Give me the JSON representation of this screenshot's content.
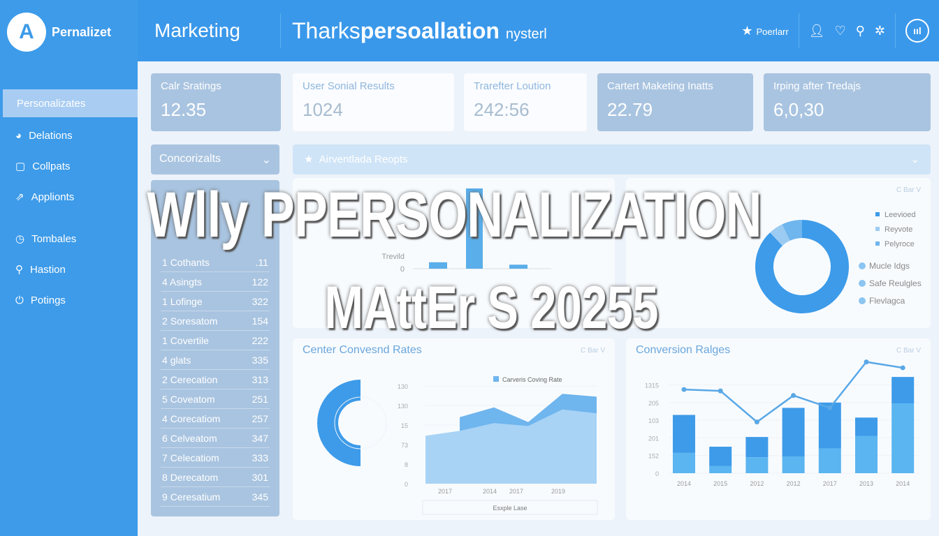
{
  "brand": {
    "logo_letter": "A",
    "name": "Pernalizet"
  },
  "sidebar": {
    "items": [
      {
        "label": "Personalizates",
        "icon": "none",
        "active": true
      },
      {
        "label": "Delations",
        "icon": "pie-icon"
      },
      {
        "label": "Collpats",
        "icon": "clipboard-icon"
      },
      {
        "label": "Applionts",
        "icon": "share-icon"
      },
      {
        "label": "Tombales",
        "icon": "clock-icon"
      },
      {
        "label": "Hastion",
        "icon": "link-icon"
      },
      {
        "label": "Potings",
        "icon": "power-icon"
      }
    ]
  },
  "header": {
    "section": "Marketing",
    "title_pre": "Tharks",
    "title_bold": "persoallation",
    "title_post": "nysterl",
    "action_label": "Poerlarr",
    "round_label": "ııl"
  },
  "stats": [
    {
      "label": "Calr Sratings",
      "value": "12.35"
    },
    {
      "label": "User Sonial Results",
      "value": "1024"
    },
    {
      "label": "Trarefter Loution",
      "value": "242:56"
    },
    {
      "label": "Cartert Maketing Inatts",
      "value": "22.79"
    },
    {
      "label": "Irping after Tredajs",
      "value": "6,0,30"
    }
  ],
  "dropdown": {
    "label": "Concorizalts"
  },
  "banner": {
    "label": "Airventlada Reopts"
  },
  "table": {
    "rows": [
      {
        "n": "1",
        "name": "Cothants",
        "val": ".11"
      },
      {
        "n": "4",
        "name": "Asingts",
        "val": "122"
      },
      {
        "n": "1",
        "name": "Lofinge",
        "val": "322"
      },
      {
        "n": "2",
        "name": "Soresatom",
        "val": "154"
      },
      {
        "n": "1",
        "name": "Covertile",
        "val": "222"
      },
      {
        "n": "4",
        "name": "glats",
        "val": "335"
      },
      {
        "n": "2",
        "name": "Cerecation",
        "val": "313"
      },
      {
        "n": "5",
        "name": "Coveatom",
        "val": "251"
      },
      {
        "n": "4",
        "name": "Corecatiom",
        "val": "257"
      },
      {
        "n": "6",
        "name": "Celveatom",
        "val": "347"
      },
      {
        "n": "7",
        "name": "Celecatiom",
        "val": "333"
      },
      {
        "n": "8",
        "name": "Derecatom",
        "val": "301"
      },
      {
        "n": "9",
        "name": "Ceresatium",
        "val": "345"
      }
    ]
  },
  "mid_left": {
    "ylabel": "Trevild",
    "zero": "0",
    "bars": [
      0.08,
      1,
      0.05
    ],
    "bar_color": "#5aaeea"
  },
  "mid_right": {
    "control": "C Bar V",
    "list": [
      "Mucle Idgs",
      "Safe Reulgles",
      "Flevlagca"
    ],
    "legend": [
      "Leevioed",
      "Reyvote",
      "Pelyroce"
    ],
    "donut": [
      88,
      5,
      7
    ],
    "colors": [
      "#3d9be9",
      "#9ccbf2",
      "#6fb5ee"
    ]
  },
  "bottom_left": {
    "title": "Center Convesnd Rates",
    "control": "C Bar V",
    "legend": "Carveris Coving Rate",
    "footer": "Esxple Lase",
    "chart_data": {
      "type": "area",
      "y_ticks": [
        "0",
        "8",
        "73",
        "15",
        "130",
        "130"
      ],
      "x_ticks": [
        "2017",
        "2014",
        "2017",
        "2019"
      ],
      "series": [
        {
          "name": "Carveris Coving Rate",
          "values": [
            2.45,
            2.7,
            3.1,
            2.95,
            3.8,
            3.6
          ]
        },
        {
          "values": [
            null,
            3.4,
            3.9,
            3.15,
            4.6,
            4.45
          ]
        }
      ],
      "ylim": [
        0,
        5
      ],
      "grid": true,
      "legend": "top-right"
    }
  },
  "bottom_right": {
    "title": "Conversion Ralges",
    "control": "C Bar V",
    "chart_data": {
      "type": "bar",
      "categories": [
        "2014",
        "2015",
        "2012",
        "2012",
        "2017",
        "2013",
        "2014"
      ],
      "y_ticks": [
        "0",
        "152",
        "201",
        "103",
        "205",
        "1315"
      ],
      "series": [
        {
          "values": [
            1.15,
            0.4,
            0.9,
            0.95,
            1.4,
            2.1,
            3.95
          ]
        },
        {
          "values": [
            3.3,
            1.5,
            2.05,
            3.7,
            4.0,
            3.15,
            5.45
          ]
        }
      ],
      "line": [
        4.74,
        4.66,
        2.9,
        4.4,
        3.7,
        6.3,
        5.97
      ],
      "ylim": [
        0,
        6.5
      ],
      "grid": true
    }
  },
  "overlay": {
    "line1": "Wlly PPERSONALIZATION",
    "line2": "MAttEr S 20255"
  }
}
